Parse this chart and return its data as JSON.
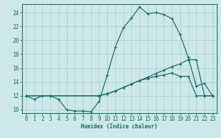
{
  "xlabel": "Humidex (Indice chaleur)",
  "bg_color": "#cce8e8",
  "grid_color": "#b0d0d0",
  "line_color": "#1a6b6b",
  "xlim": [
    -0.5,
    23.5
  ],
  "ylim": [
    9.5,
    25.2
  ],
  "yticks": [
    10,
    12,
    14,
    16,
    18,
    20,
    22,
    24
  ],
  "xticks": [
    0,
    1,
    2,
    3,
    4,
    5,
    6,
    7,
    8,
    9,
    10,
    11,
    12,
    13,
    14,
    15,
    16,
    17,
    18,
    19,
    20,
    21,
    22,
    23
  ],
  "line1_x": [
    0,
    1,
    2,
    3,
    4,
    5,
    6,
    7,
    8,
    9,
    10,
    11,
    12,
    13,
    14,
    15,
    16,
    17,
    18,
    19,
    20,
    21,
    22,
    23
  ],
  "line1_y": [
    12.0,
    11.5,
    12.0,
    12.0,
    11.5,
    10.0,
    9.8,
    9.8,
    9.7,
    11.2,
    15.0,
    19.0,
    21.8,
    23.2,
    24.8,
    23.8,
    24.0,
    23.7,
    23.1,
    20.8,
    17.5,
    13.4,
    13.8,
    12.0
  ],
  "line2_x": [
    0,
    3,
    9,
    10,
    11,
    12,
    13,
    14,
    15,
    16,
    17,
    18,
    19,
    20,
    21,
    22,
    23
  ],
  "line2_y": [
    12.0,
    12.0,
    12.0,
    12.3,
    12.7,
    13.2,
    13.7,
    14.2,
    14.7,
    15.2,
    15.7,
    16.2,
    16.6,
    17.2,
    17.2,
    12.0,
    12.0
  ],
  "line3_x": [
    0,
    3,
    9,
    10,
    11,
    12,
    13,
    14,
    15,
    16,
    17,
    18,
    19,
    20,
    21,
    22,
    23
  ],
  "line3_y": [
    12.0,
    12.0,
    12.0,
    12.3,
    12.7,
    13.2,
    13.7,
    14.2,
    14.5,
    14.8,
    15.0,
    15.3,
    14.8,
    14.8,
    12.0,
    12.0,
    12.0
  ]
}
